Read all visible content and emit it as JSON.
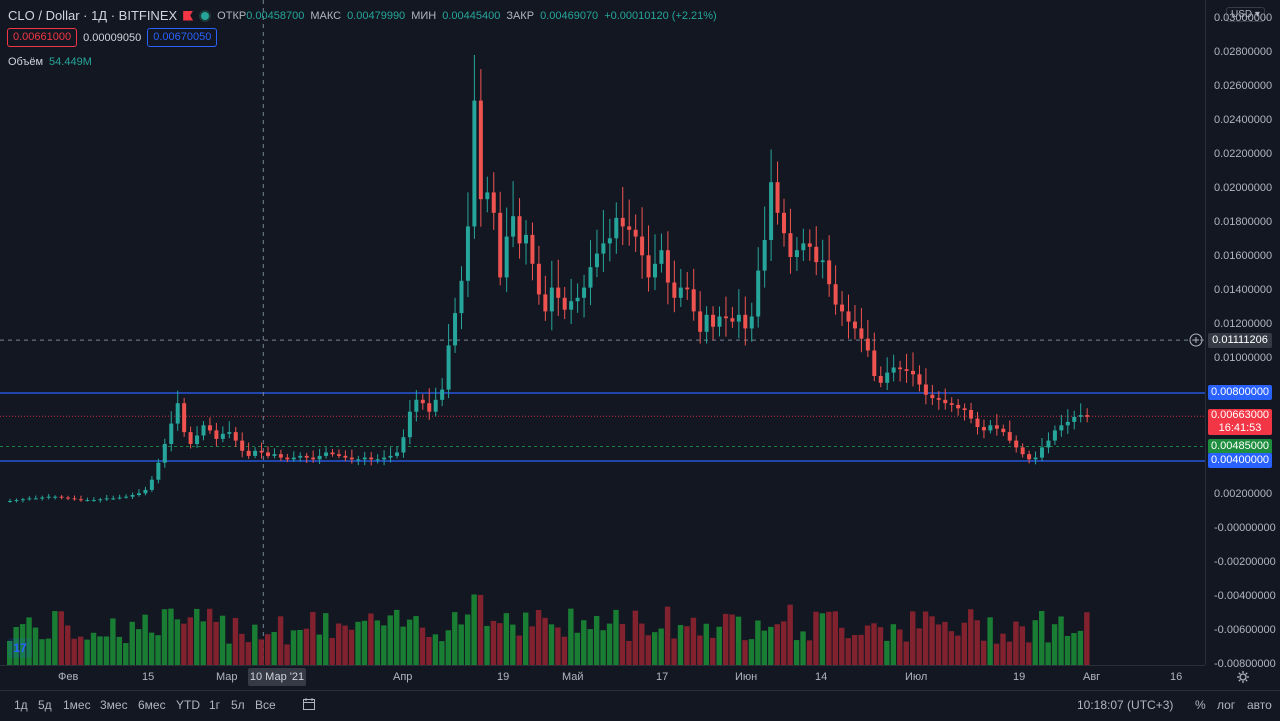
{
  "header": {
    "symbol_title": "CLO / Dollar · 1Д · BITFINEX",
    "ohlc": [
      {
        "k": "ОТКР",
        "v": "0.00458700"
      },
      {
        "k": "МАКС",
        "v": "0.00479990"
      },
      {
        "k": "МИН",
        "v": "0.00445400"
      },
      {
        "k": "ЗАКР",
        "v": "0.00469070"
      }
    ],
    "change": "+0.00010120 (+2.21%)",
    "sell_price": "0.00661000",
    "spread": "0.00009050",
    "buy_price": "0.00670050",
    "volume_label": "Объём",
    "volume_value": "54.449M",
    "currency": "USD"
  },
  "price_axis": {
    "ticks": [
      "0.03000000",
      "0.02800000",
      "0.02600000",
      "0.02400000",
      "0.02200000",
      "0.02000000",
      "0.01800000",
      "0.01600000",
      "0.01400000",
      "0.01200000",
      "0.01000000",
      "0.00800000",
      "0.00600000",
      "0.00400000",
      "0.00200000",
      "-0.00000000",
      "-0.00200000",
      "-0.00400000",
      "-0.00600000",
      "-0.00800000"
    ],
    "tags": {
      "crosshair_price": "0.01111206",
      "level_upper": "0.00800000",
      "last_price": "0.00663000",
      "countdown": "16:41:53",
      "level_mid": "0.00485000",
      "level_lower": "0.00400000"
    }
  },
  "time_axis": {
    "labels": [
      "Фев",
      "15",
      "Мар",
      "5",
      "Апр",
      "19",
      "Май",
      "17",
      "Июн",
      "14",
      "Июл",
      "19",
      "Авг",
      "16"
    ],
    "crosshair_date": "10 Мар '21"
  },
  "toolbar": {
    "ranges": [
      "1д",
      "5д",
      "1мес",
      "3мес",
      "6мес",
      "YTD",
      "1г",
      "5л",
      "Все"
    ],
    "time": "10:18:07 (UTC+3)",
    "percent": "%",
    "log": "лог",
    "auto": "авто"
  },
  "logo_text": "17",
  "colors": {
    "up": "#26a69a",
    "down": "#ef5350",
    "vol_up": "#1b8a36",
    "vol_down": "#8e2430",
    "level_line": "#2962ff",
    "last_price": "#f23645",
    "mid_level": "#22ab4a"
  },
  "chart_data": {
    "type": "candlestick",
    "y_range": [
      -0.008,
      0.031
    ],
    "x_range": [
      "2021-01-23",
      "2021-08-21"
    ],
    "horizontal_levels": [
      0.008,
      0.004,
      0.00485
    ],
    "last_price": 0.00663,
    "crosshair_date": "2021-03-10",
    "crosshair_price": 0.01111206,
    "series_close": [
      0.00165,
      0.0017,
      0.00175,
      0.0018,
      0.0018,
      0.00185,
      0.0019,
      0.0019,
      0.00185,
      0.0018,
      0.00175,
      0.0017,
      0.0017,
      0.0017,
      0.00175,
      0.0018,
      0.0018,
      0.00185,
      0.0019,
      0.002,
      0.0021,
      0.0023,
      0.0029,
      0.0039,
      0.005,
      0.0062,
      0.0074,
      0.0057,
      0.005,
      0.0055,
      0.0061,
      0.0058,
      0.0053,
      0.0056,
      0.0057,
      0.0052,
      0.0046,
      0.0043,
      0.0046,
      0.0045,
      0.0043,
      0.0044,
      0.0042,
      0.0041,
      0.0042,
      0.0043,
      0.0042,
      0.0041,
      0.0043,
      0.0045,
      0.0044,
      0.0043,
      0.0042,
      0.0041,
      0.0041,
      0.0042,
      0.0041,
      0.0041,
      0.0042,
      0.0043,
      0.0045,
      0.0054,
      0.0069,
      0.0076,
      0.0074,
      0.0069,
      0.0076,
      0.0082,
      0.0108,
      0.0127,
      0.0146,
      0.0178,
      0.0252,
      0.0194,
      0.0198,
      0.0186,
      0.0148,
      0.0172,
      0.0184,
      0.0168,
      0.0173,
      0.0156,
      0.0138,
      0.0128,
      0.0142,
      0.0136,
      0.0129,
      0.0134,
      0.0136,
      0.0142,
      0.0154,
      0.0162,
      0.0168,
      0.0171,
      0.0183,
      0.0178,
      0.0176,
      0.0172,
      0.0161,
      0.0148,
      0.0156,
      0.0164,
      0.0145,
      0.0136,
      0.0142,
      0.0141,
      0.0128,
      0.0116,
      0.0126,
      0.0119,
      0.0125,
      0.0124,
      0.0122,
      0.0126,
      0.0118,
      0.0125,
      0.0152,
      0.017,
      0.0204,
      0.0186,
      0.0174,
      0.016,
      0.0164,
      0.0168,
      0.0166,
      0.0157,
      0.0158,
      0.0144,
      0.0132,
      0.0128,
      0.0122,
      0.0118,
      0.0112,
      0.0105,
      0.009,
      0.0086,
      0.0092,
      0.0095,
      0.0094,
      0.0093,
      0.0091,
      0.0085,
      0.0079,
      0.0077,
      0.0076,
      0.0074,
      0.0073,
      0.0071,
      0.007,
      0.0065,
      0.006,
      0.0058,
      0.0061,
      0.0059,
      0.0057,
      0.0052,
      0.0048,
      0.0044,
      0.0041,
      0.0042,
      0.0048,
      0.0052,
      0.0058,
      0.0061,
      0.0063,
      0.0066,
      0.0067,
      0.0066
    ]
  }
}
